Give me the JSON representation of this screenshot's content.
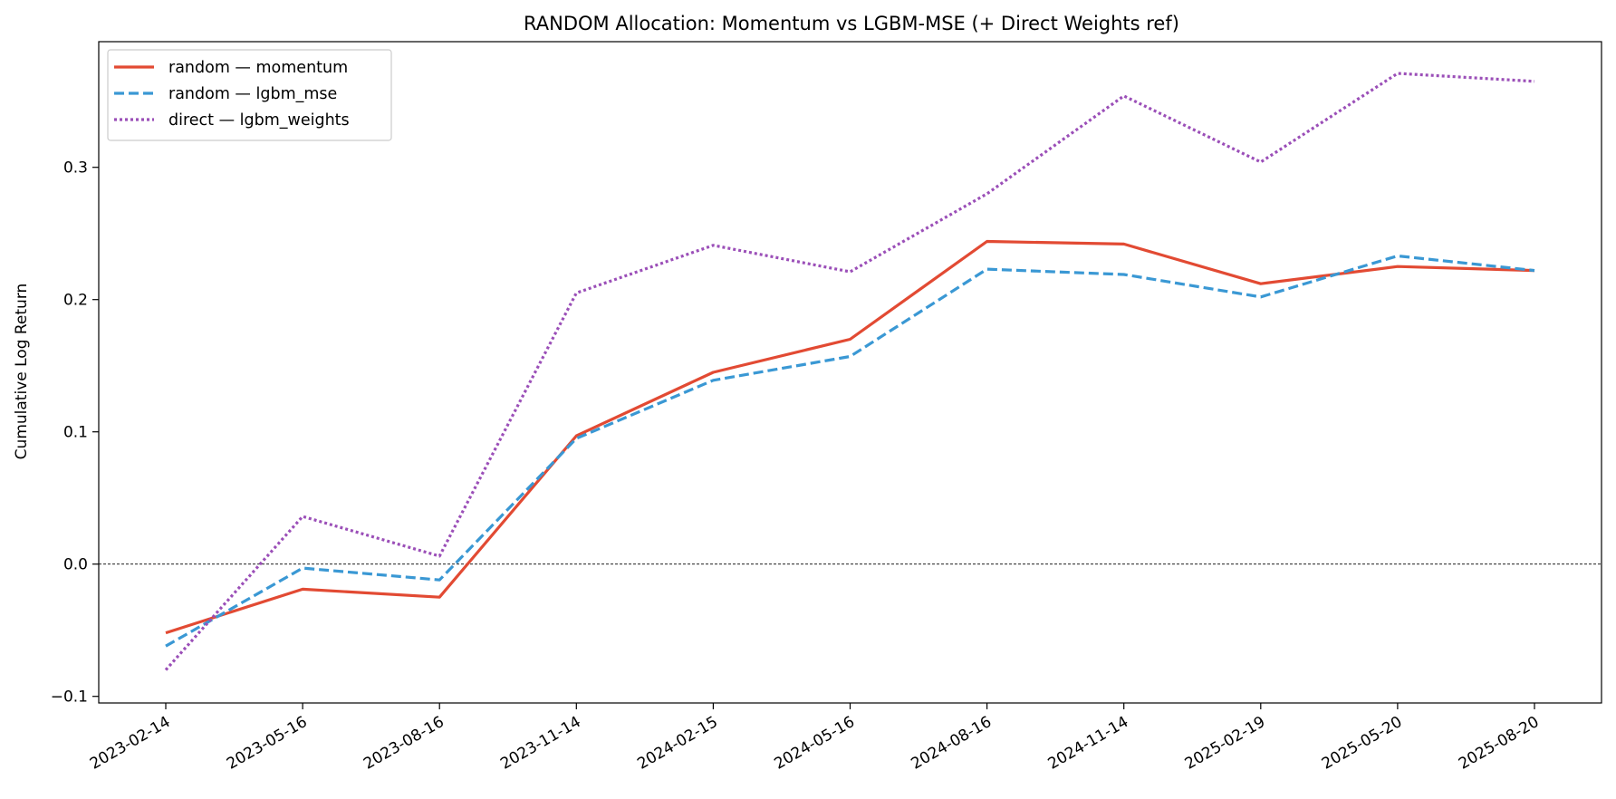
{
  "chart_data": {
    "type": "line",
    "title": "RANDOM Allocation: Momentum vs LGBM-MSE (+ Direct Weights ref)",
    "xlabel": "",
    "ylabel": "Cumulative Log Return",
    "x": [
      "2023-02-14",
      "2023-05-16",
      "2023-08-16",
      "2023-11-14",
      "2024-02-15",
      "2024-05-16",
      "2024-08-16",
      "2024-11-14",
      "2025-02-19",
      "2025-05-20",
      "2025-08-20"
    ],
    "ylim": [
      -0.105,
      0.395
    ],
    "yticks": [
      -0.1,
      0.0,
      0.1,
      0.2,
      0.3
    ],
    "ytick_labels": [
      "−0.1",
      "0.0",
      "0.1",
      "0.2",
      "0.3"
    ],
    "zero_line": true,
    "grid": false,
    "legend_position": "top-left",
    "series": [
      {
        "name": "random — momentum",
        "color": "#e24a33",
        "style": "solid",
        "values": [
          -0.052,
          -0.019,
          -0.025,
          0.097,
          0.145,
          0.17,
          0.244,
          0.242,
          0.212,
          0.225,
          0.222
        ]
      },
      {
        "name": "random — lgbm_mse",
        "color": "#3a98d4",
        "style": "dashed",
        "values": [
          -0.062,
          -0.003,
          -0.012,
          0.095,
          0.139,
          0.157,
          0.223,
          0.219,
          0.202,
          0.233,
          0.222
        ]
      },
      {
        "name": "direct — lgbm_weights",
        "color": "#9b4fb8",
        "style": "dotted",
        "values": [
          -0.08,
          0.036,
          0.006,
          0.205,
          0.241,
          0.221,
          0.28,
          0.354,
          0.304,
          0.371,
          0.365
        ]
      }
    ]
  }
}
